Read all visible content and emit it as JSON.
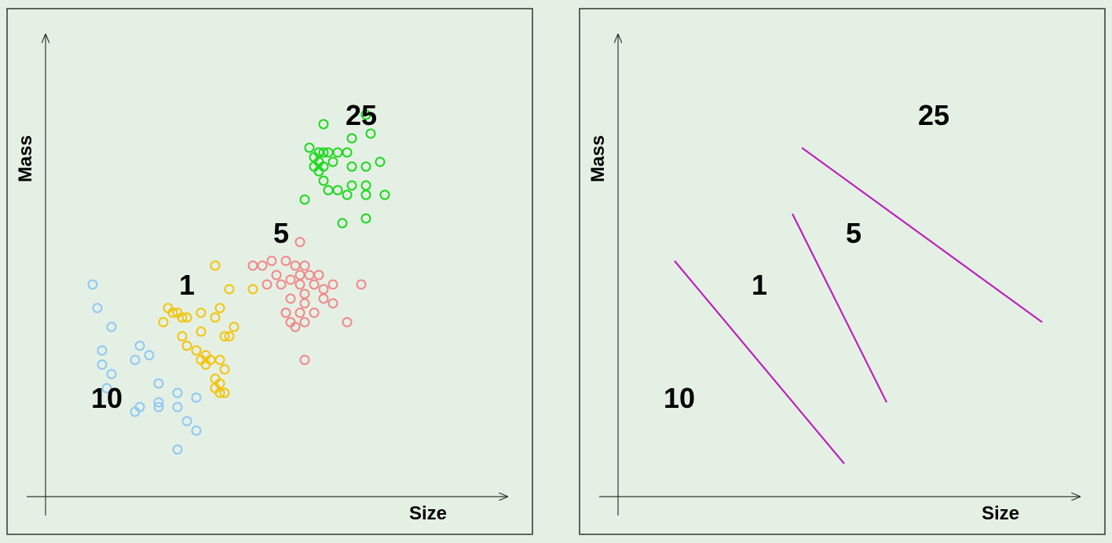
{
  "colors": {
    "background": "#e5f0e5",
    "frame": "#333333",
    "axis": "#333333",
    "boundary": "#bb22bb",
    "cluster_10": "#8ec8f4",
    "cluster_1": "#f2c40c",
    "cluster_5": "#f08888",
    "cluster_25": "#1cd81c"
  },
  "chart_data": [
    {
      "type": "scatter",
      "title": "",
      "xlabel": "Size",
      "ylabel": "Mass",
      "xlim": [
        0,
        100
      ],
      "ylim": [
        0,
        100
      ],
      "grid": false,
      "legend": "none",
      "cluster_labels": [
        {
          "text": "10",
          "x": 13,
          "y": 21
        },
        {
          "text": "1",
          "x": 30,
          "y": 45
        },
        {
          "text": "5",
          "x": 50,
          "y": 56
        },
        {
          "text": "25",
          "x": 67,
          "y": 81
        }
      ],
      "series": [
        {
          "name": "10",
          "color_key": "cluster_10",
          "points": [
            [
              10,
              45
            ],
            [
              11,
              40
            ],
            [
              14,
              36
            ],
            [
              12,
              31
            ],
            [
              12,
              28
            ],
            [
              14,
              26
            ],
            [
              13,
              23
            ],
            [
              20,
              32
            ],
            [
              22,
              30
            ],
            [
              19,
              29
            ],
            [
              24,
              24
            ],
            [
              24,
              20
            ],
            [
              28,
              22
            ],
            [
              32,
              21
            ],
            [
              30,
              16
            ],
            [
              24,
              19
            ],
            [
              20,
              19
            ],
            [
              19,
              18
            ],
            [
              28,
              19
            ],
            [
              32,
              14
            ],
            [
              28,
              10
            ]
          ]
        },
        {
          "name": "1",
          "color_key": "cluster_1",
          "points": [
            [
              36,
              49
            ],
            [
              39,
              44
            ],
            [
              44,
              44
            ],
            [
              26,
              40
            ],
            [
              27,
              39
            ],
            [
              28,
              39
            ],
            [
              29,
              38
            ],
            [
              30,
              38
            ],
            [
              25,
              37
            ],
            [
              33,
              39
            ],
            [
              37,
              40
            ],
            [
              36,
              38
            ],
            [
              40,
              36
            ],
            [
              39,
              34
            ],
            [
              33,
              35
            ],
            [
              29,
              34
            ],
            [
              38,
              34
            ],
            [
              30,
              32
            ],
            [
              32,
              31
            ],
            [
              34,
              30
            ],
            [
              35,
              29
            ],
            [
              37,
              29
            ],
            [
              38,
              27
            ],
            [
              33,
              29
            ],
            [
              34,
              28
            ],
            [
              36,
              25
            ],
            [
              36,
              23
            ],
            [
              37,
              24
            ],
            [
              37,
              22
            ],
            [
              38,
              22
            ]
          ]
        },
        {
          "name": "5",
          "color_key": "cluster_5",
          "points": [
            [
              54,
              54
            ],
            [
              46,
              49
            ],
            [
              48,
              50
            ],
            [
              51,
              50
            ],
            [
              53,
              49
            ],
            [
              55,
              49
            ],
            [
              54,
              47
            ],
            [
              44,
              49
            ],
            [
              49,
              47
            ],
            [
              52,
              46
            ],
            [
              56,
              47
            ],
            [
              58,
              47
            ],
            [
              47,
              45
            ],
            [
              50,
              45
            ],
            [
              54,
              45
            ],
            [
              55,
              43
            ],
            [
              57,
              45
            ],
            [
              59,
              44
            ],
            [
              61,
              45
            ],
            [
              67,
              45
            ],
            [
              52,
              42
            ],
            [
              55,
              41
            ],
            [
              59,
              42
            ],
            [
              61,
              41
            ],
            [
              51,
              39
            ],
            [
              52,
              37
            ],
            [
              54,
              39
            ],
            [
              57,
              39
            ],
            [
              51,
              39
            ],
            [
              53,
              36
            ],
            [
              55,
              37
            ],
            [
              64,
              37
            ],
            [
              55,
              29
            ]
          ]
        },
        {
          "name": "25",
          "color_key": "cluster_25",
          "points": [
            [
              68,
              81
            ],
            [
              59,
              79
            ],
            [
              65,
              76
            ],
            [
              69,
              77
            ],
            [
              56,
              74
            ],
            [
              57,
              72
            ],
            [
              58,
              73
            ],
            [
              59,
              73
            ],
            [
              60,
              73
            ],
            [
              62,
              73
            ],
            [
              64,
              73
            ],
            [
              57,
              70
            ],
            [
              58,
              69
            ],
            [
              59,
              70
            ],
            [
              58,
              71
            ],
            [
              61,
              71
            ],
            [
              65,
              70
            ],
            [
              68,
              70
            ],
            [
              71,
              71
            ],
            [
              59,
              67
            ],
            [
              60,
              65
            ],
            [
              62,
              65
            ],
            [
              65,
              66
            ],
            [
              68,
              66
            ],
            [
              64,
              64
            ],
            [
              68,
              64
            ],
            [
              72,
              64
            ],
            [
              55,
              63
            ],
            [
              63,
              58
            ],
            [
              68,
              59
            ]
          ]
        }
      ]
    },
    {
      "type": "line",
      "title": "",
      "xlabel": "Size",
      "ylabel": "Mass",
      "xlim": [
        0,
        100
      ],
      "ylim": [
        0,
        100
      ],
      "grid": false,
      "legend": "none",
      "cluster_labels": [
        {
          "text": "10",
          "x": 13,
          "y": 21
        },
        {
          "text": "1",
          "x": 30,
          "y": 45
        },
        {
          "text": "5",
          "x": 50,
          "y": 56
        },
        {
          "text": "25",
          "x": 67,
          "y": 81
        }
      ],
      "series": [
        {
          "name": "boundary-1",
          "color_key": "boundary",
          "points": [
            [
              12,
              50
            ],
            [
              48,
              7
            ]
          ]
        },
        {
          "name": "boundary-2",
          "color_key": "boundary",
          "points": [
            [
              37,
              60
            ],
            [
              57,
              20
            ]
          ]
        },
        {
          "name": "boundary-3",
          "color_key": "boundary",
          "points": [
            [
              39,
              74
            ],
            [
              90,
              37
            ]
          ]
        }
      ]
    }
  ]
}
